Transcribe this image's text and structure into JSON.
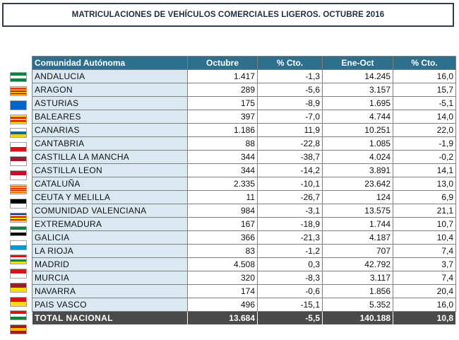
{
  "title": "MATRICULACIONES DE VEHÍCULOS COMERCIALES LIGEROS. OCTUBRE 2016",
  "table": {
    "headers": [
      "Comunidad Autónoma",
      "Octubre",
      "% Cto.",
      "Ene-Oct",
      "% Cto."
    ],
    "rows": [
      {
        "region": "ANDALUCIA",
        "octubre": "1.417",
        "cto_oct": "-1,3",
        "ene_oct": "14.245",
        "cto_ytd": "16,0",
        "flag_icon": "andalucia-flag-icon",
        "flag_colors": [
          "#00843d",
          "#ffffff",
          "#00843d"
        ]
      },
      {
        "region": "ARAGON",
        "octubre": "289",
        "cto_oct": "-5,6",
        "ene_oct": "3.157",
        "cto_ytd": "15,7",
        "flag_icon": "aragon-flag-icon",
        "flag_colors": [
          "#fcdd09",
          "#da121a",
          "#fcdd09",
          "#da121a",
          "#fcdd09",
          "#da121a",
          "#fcdd09"
        ]
      },
      {
        "region": "ASTURIAS",
        "octubre": "175",
        "cto_oct": "-8,9",
        "ene_oct": "1.695",
        "cto_ytd": "-5,1",
        "flag_icon": "asturias-flag-icon",
        "flag_colors": [
          "#0066cc"
        ]
      },
      {
        "region": "BALEARES",
        "octubre": "397",
        "cto_oct": "-7,0",
        "ene_oct": "4.744",
        "cto_ytd": "14,0",
        "flag_icon": "baleares-flag-icon",
        "flag_colors": [
          "#fcdd09",
          "#da121a",
          "#fcdd09",
          "#da121a",
          "#fcdd09"
        ]
      },
      {
        "region": "CANARIAS",
        "octubre": "1.186",
        "cto_oct": "11,9",
        "ene_oct": "10.251",
        "cto_ytd": "22,0",
        "flag_icon": "canarias-flag-icon",
        "flag_colors": [
          "#ffffff",
          "#0768a9",
          "#fcd116"
        ]
      },
      {
        "region": "CANTABRIA",
        "octubre": "88",
        "cto_oct": "-22,8",
        "ene_oct": "1.085",
        "cto_ytd": "-1,9",
        "flag_icon": "cantabria-flag-icon",
        "flag_colors": [
          "#ffffff",
          "#da121a"
        ]
      },
      {
        "region": "CASTILLA LA MANCHA",
        "octubre": "344",
        "cto_oct": "-38,7",
        "ene_oct": "4.024",
        "cto_ytd": "-0,2",
        "flag_icon": "castilla-la-mancha-flag-icon",
        "flag_colors": [
          "#9b1c31",
          "#ffffff"
        ]
      },
      {
        "region": "CASTILLA LEON",
        "octubre": "344",
        "cto_oct": "-14,2",
        "ene_oct": "3.891",
        "cto_ytd": "14,1",
        "flag_icon": "castilla-leon-flag-icon",
        "flag_colors": [
          "#c8102e",
          "#ffffff"
        ]
      },
      {
        "region": "CATALUÑA",
        "octubre": "2.335",
        "cto_oct": "-10,1",
        "ene_oct": "23.642",
        "cto_ytd": "13,0",
        "flag_icon": "cataluna-flag-icon",
        "flag_colors": [
          "#fcdd09",
          "#da121a",
          "#fcdd09",
          "#da121a",
          "#fcdd09",
          "#da121a",
          "#fcdd09",
          "#da121a",
          "#fcdd09"
        ]
      },
      {
        "region": "CEUTA Y MELILLA",
        "octubre": "11",
        "cto_oct": "-26,7",
        "ene_oct": "124",
        "cto_ytd": "6,9",
        "flag_icon": "ceuta-melilla-flag-icon",
        "flag_colors": [
          "#000000",
          "#ffffff"
        ]
      },
      {
        "region": "COMUNIDAD VALENCIANA",
        "octubre": "984",
        "cto_oct": "-3,1",
        "ene_oct": "13.575",
        "cto_ytd": "21,1",
        "flag_icon": "valencia-flag-icon",
        "flag_colors": [
          "#0039a6",
          "#fcdd09",
          "#da121a",
          "#fcdd09",
          "#da121a",
          "#fcdd09"
        ]
      },
      {
        "region": "EXTREMADURA",
        "octubre": "167",
        "cto_oct": "-18,9",
        "ene_oct": "1.744",
        "cto_ytd": "10,7",
        "flag_icon": "extremadura-flag-icon",
        "flag_colors": [
          "#00843d",
          "#ffffff",
          "#000000"
        ]
      },
      {
        "region": "GALICIA",
        "octubre": "366",
        "cto_oct": "-21,3",
        "ene_oct": "4.187",
        "cto_ytd": "10,4",
        "flag_icon": "galicia-flag-icon",
        "flag_colors": [
          "#ffffff",
          "#0099cc"
        ]
      },
      {
        "region": "LA RIOJA",
        "octubre": "83",
        "cto_oct": "-1,2",
        "ene_oct": "707",
        "cto_ytd": "7,4",
        "flag_icon": "la-rioja-flag-icon",
        "flag_colors": [
          "#da121a",
          "#ffffff",
          "#00843d",
          "#fcdd09"
        ]
      },
      {
        "region": "MADRID",
        "octubre": "4.508",
        "cto_oct": "0,3",
        "ene_oct": "42.792",
        "cto_ytd": "3,7",
        "flag_icon": "madrid-flag-icon",
        "flag_colors": [
          "#da121a",
          "#ffffff"
        ]
      },
      {
        "region": "MURCIA",
        "octubre": "320",
        "cto_oct": "-8,3",
        "ene_oct": "3.117",
        "cto_ytd": "7,4",
        "flag_icon": "murcia-flag-icon",
        "flag_colors": [
          "#9b1c31",
          "#fcdd09"
        ]
      },
      {
        "region": "NAVARRA",
        "octubre": "174",
        "cto_oct": "-0,6",
        "ene_oct": "1.856",
        "cto_ytd": "20,4",
        "flag_icon": "navarra-flag-icon",
        "flag_colors": [
          "#da121a",
          "#fcdd09"
        ]
      },
      {
        "region": "PAIS VASCO",
        "octubre": "496",
        "cto_oct": "-15,1",
        "ene_oct": "5.352",
        "cto_ytd": "16,0",
        "flag_icon": "pais-vasco-flag-icon",
        "flag_colors": [
          "#da121a",
          "#ffffff",
          "#00843d"
        ]
      }
    ],
    "total": {
      "region": "TOTAL NACIONAL",
      "octubre": "13.684",
      "cto_oct": "-5,5",
      "ene_oct": "140.188",
      "cto_ytd": "10,8",
      "flag_icon": "espana-flag-icon",
      "flag_colors": [
        "#aa151b",
        "#f1bf00",
        "#aa151b"
      ]
    }
  },
  "colors": {
    "header_bg": "#2f6f8e",
    "region_cell_bg": "#dae9f1",
    "total_row_bg": "#4a4a4a",
    "title_border": "#2f3e4f"
  }
}
